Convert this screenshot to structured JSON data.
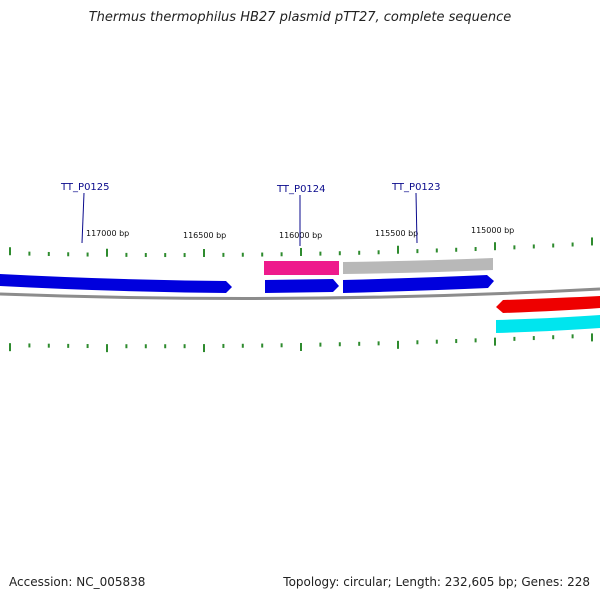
{
  "title": "Thermus thermophilus HB27 plasmid pTT27, complete sequence",
  "footer": {
    "accession": "Accession: NC_005838",
    "summary": "Topology: circular; Length: 232,605 bp; Genes: 228"
  },
  "scale_labels": [
    "117000 bp",
    "116500 bp",
    "116000 bp",
    "115500 bp",
    "115000 bp"
  ],
  "gene_labels": [
    "TT_P0125",
    "TT_P0124",
    "TT_P0123"
  ],
  "colors": {
    "backbone": "#8c8c8c",
    "tick": "#2e8b2e",
    "cds_blue": "#0000dd",
    "pink": "#ee1a8c",
    "gray": "#b8b8b8",
    "red": "#ee0000",
    "cyan": "#00e5ee",
    "label": "#0a0a8c"
  }
}
